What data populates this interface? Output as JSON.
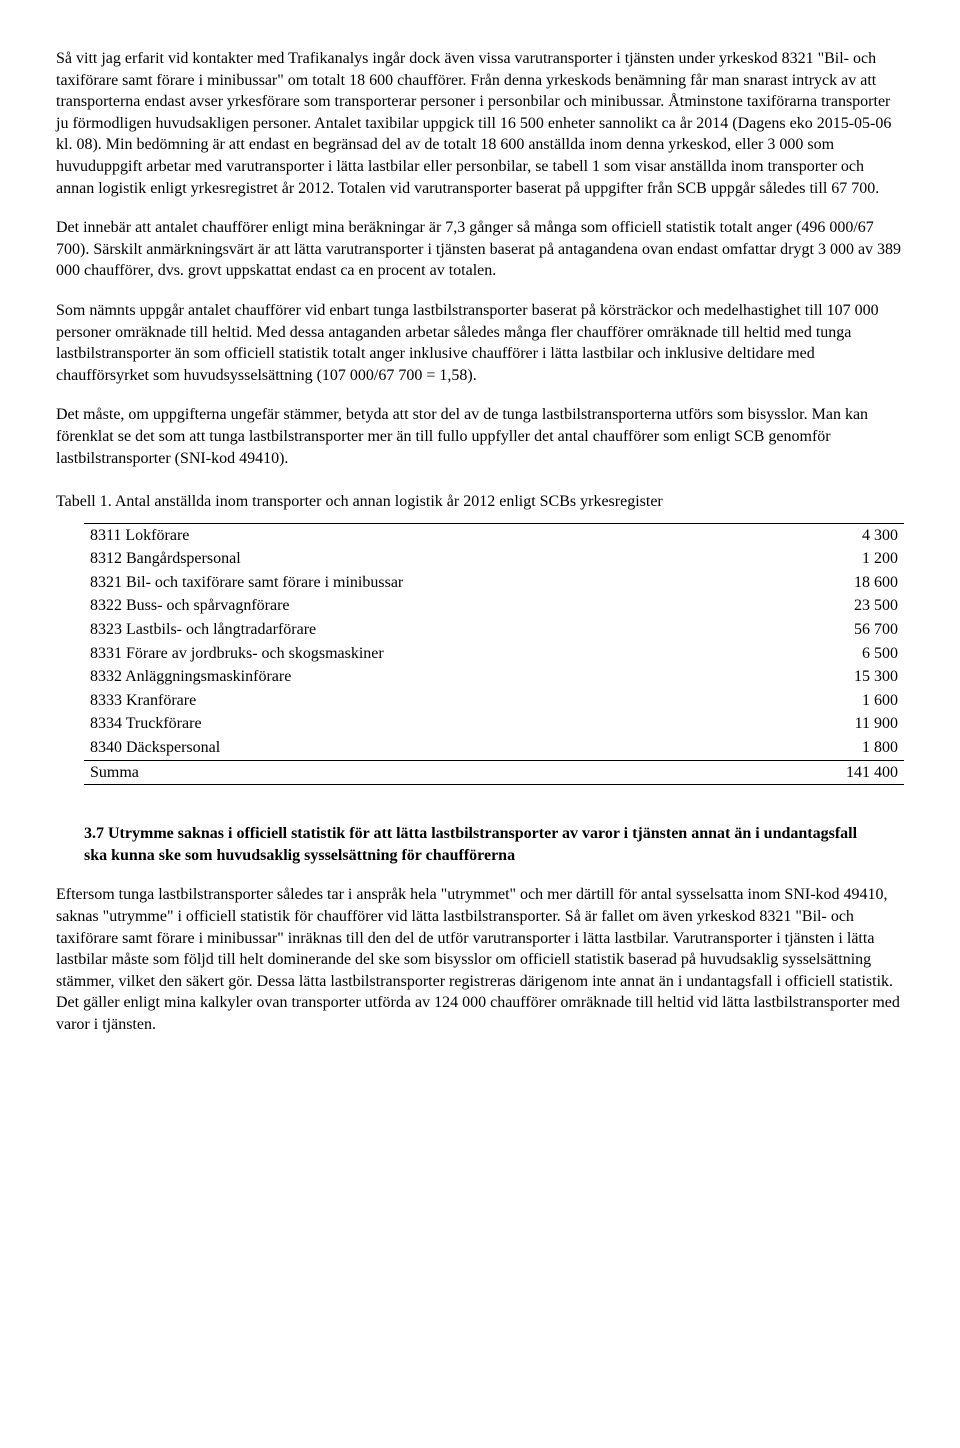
{
  "paragraphs": {
    "p1": "Så vitt jag erfarit vid kontakter med Trafikanalys ingår dock även vissa varutransporter i tjänsten under yrkeskod 8321 \"Bil- och taxiförare samt förare i minibussar\" om totalt 18 600 chaufförer. Från denna yrkeskods benämning får man snarast intryck av att transporterna endast avser yrkesförare som transporterar personer i personbilar och minibussar. Åtminstone taxiförarna transporter ju förmodligen huvudsakligen personer. Antalet taxibilar uppgick till 16 500 enheter sannolikt ca år 2014 (Dagens eko 2015-05-06 kl. 08). Min bedömning är att endast en begränsad del av de totalt 18 600 anställda inom denna yrkeskod, eller 3 000 som huvuduppgift arbetar med varutransporter i lätta lastbilar eller personbilar, se tabell 1 som visar anställda inom transporter och annan logistik enligt yrkesregistret år 2012. Totalen vid varutransporter baserat på uppgifter från SCB uppgår således till 67 700.",
    "p2": "Det innebär att antalet chaufförer enligt mina beräkningar är 7,3 gånger så många som officiell statistik totalt anger (496 000/67 700). Särskilt anmärkningsvärt är att lätta varutransporter i tjänsten baserat på antagandena ovan endast omfattar drygt 3 000 av 389 000 chaufförer, dvs. grovt uppskattat endast ca en procent av totalen.",
    "p3": "Som nämnts uppgår antalet chaufförer vid enbart tunga lastbilstransporter baserat på körsträckor och medelhastighet till 107 000 personer omräknade till heltid. Med dessa antaganden arbetar således många fler chaufförer omräknade till heltid med tunga lastbilstransporter än som officiell statistik totalt anger inklusive chaufförer i lätta lastbilar och inklusive deltidare med chaufförsyrket som huvudsysselsättning (107 000/67 700 = 1,58).",
    "p4": "Det måste, om uppgifterna ungefär stämmer, betyda att stor del av de tunga lastbilstransporterna utförs som bisysslor. Man kan förenklat se det som att tunga lastbilstransporter mer än till fullo uppfyller det antal chaufförer som enligt SCB genomför lastbilstransporter (SNI-kod 49410).",
    "p5": "Eftersom tunga lastbilstransporter således tar i anspråk hela \"utrymmet\" och mer därtill för antal sysselsatta inom SNI-kod 49410, saknas \"utrymme\" i officiell statistik för chaufförer vid lätta lastbilstransporter. Så är fallet om även yrkeskod 8321 \"Bil- och taxiförare samt förare i minibussar\" inräknas till den del de utför varutransporter i lätta lastbilar. Varutransporter i tjänsten i lätta lastbilar måste som följd till helt dominerande del ske som bisysslor om officiell statistik baserad på huvudsaklig sysselsättning stämmer, vilket den säkert gör. Dessa lätta lastbilstransporter registreras därigenom inte annat än i undantagsfall i officiell statistik. Det gäller enligt mina kalkyler ovan transporter utförda av 124 000 chaufförer omräknade till heltid vid lätta lastbilstransporter med varor i tjänsten."
  },
  "table": {
    "caption": "Tabell 1. Antal anställda inom transporter och annan logistik år 2012 enligt SCBs yrkesregister",
    "rows": [
      {
        "label": "8311 Lokförare",
        "value": "4 300"
      },
      {
        "label": "8312 Bangårdspersonal",
        "value": "1 200"
      },
      {
        "label": "8321 Bil- och taxiförare samt förare i minibussar",
        "value": "18 600"
      },
      {
        "label": "8322 Buss- och spårvagnförare",
        "value": "23 500"
      },
      {
        "label": "8323 Lastbils- och långtradarförare",
        "value": "56 700"
      },
      {
        "label": "8331 Förare av jordbruks- och skogsmaskiner",
        "value": "6 500"
      },
      {
        "label": "8332 Anläggningsmaskinförare",
        "value": "15 300"
      },
      {
        "label": "8333 Kranförare",
        "value": "1 600"
      },
      {
        "label": "8334 Truckförare",
        "value": "11 900"
      },
      {
        "label": "8340 Däckspersonal",
        "value": "1 800"
      }
    ],
    "sum_label": "Summa",
    "sum_value": "141 400"
  },
  "section_heading": "3.7 Utrymme saknas i officiell statistik för att lätta lastbilstransporter av varor i tjänsten annat än i undantagsfall ska kunna ske som huvudsaklig sysselsättning för chaufförerna"
}
